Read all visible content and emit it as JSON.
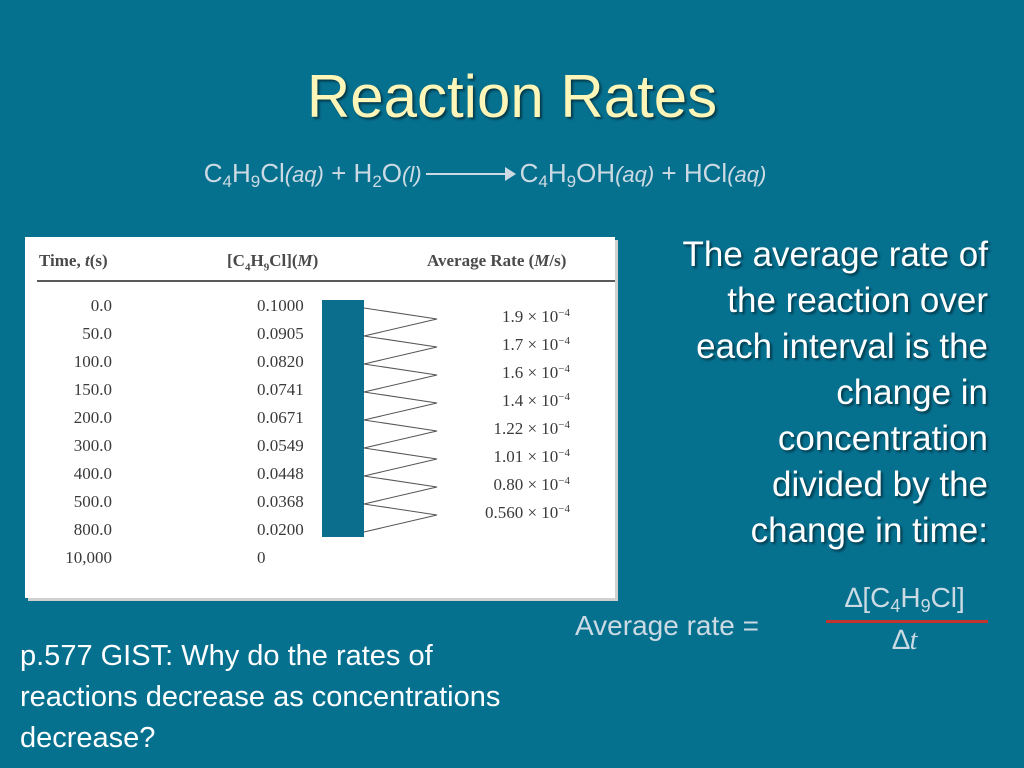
{
  "title": "Reaction Rates",
  "equation": {
    "reactant1": {
      "p1": "C",
      "s1": "4",
      "p2": "H",
      "s2": "9",
      "p3": "Cl",
      "state": "(aq)"
    },
    "plus1": "+",
    "reactant2": {
      "p1": "H",
      "s1": "2",
      "p2": "O",
      "state": "(l)"
    },
    "product1": {
      "p1": "C",
      "s1": "4",
      "p2": "H",
      "s2": "9",
      "p3": "OH",
      "state": "(aq)"
    },
    "plus2": "+",
    "product2": {
      "p1": "HCl",
      "state": "(aq)"
    }
  },
  "table": {
    "headers": {
      "time_prefix": "Time, ",
      "time_var": "t",
      "time_unit": "(s)",
      "conc_open": "[C",
      "conc_s1": "4",
      "conc_h": "H",
      "conc_s2": "9",
      "conc_close": "Cl](",
      "conc_unit": "M",
      "conc_end": ")",
      "rate_prefix": "Average Rate (",
      "rate_unit": "M",
      "rate_end": "/s)"
    },
    "times": [
      "0.0",
      "50.0",
      "100.0",
      "150.0",
      "200.0",
      "300.0",
      "400.0",
      "500.0",
      "800.0",
      "10,000"
    ],
    "concentrations": [
      "0.1000",
      "0.0905",
      "0.0820",
      "0.0741",
      "0.0671",
      "0.0549",
      "0.0448",
      "0.0368",
      "0.0200",
      "0"
    ],
    "rates": [
      {
        "mantissa": "1.9",
        "times": "×",
        "base": "10",
        "exp": "−4"
      },
      {
        "mantissa": "1.7",
        "times": "×",
        "base": "10",
        "exp": "−4"
      },
      {
        "mantissa": "1.6",
        "times": "×",
        "base": "10",
        "exp": "−4"
      },
      {
        "mantissa": "1.4",
        "times": "×",
        "base": "10",
        "exp": "−4"
      },
      {
        "mantissa": "1.22",
        "times": "×",
        "base": "10",
        "exp": "−4"
      },
      {
        "mantissa": "1.01",
        "times": "×",
        "base": "10",
        "exp": "−4"
      },
      {
        "mantissa": "0.80",
        "times": "×",
        "base": "10",
        "exp": "−4"
      },
      {
        "mantissa": "0.560",
        "times": "×",
        "base": "10",
        "exp": "−4"
      }
    ]
  },
  "explanation": {
    "lines": [
      "The average rate of",
      "the reaction over",
      "each interval is the",
      "change in",
      "concentration",
      "divided by the",
      "change in time:"
    ]
  },
  "formula": {
    "label": "Average rate =",
    "numerator": {
      "delta": "∆",
      "open": "[C",
      "s1": "4",
      "h": "H",
      "s2": "9",
      "close": "Cl]"
    },
    "denominator": {
      "delta": "∆",
      "var": "t"
    }
  },
  "gist": {
    "lines": [
      "p.577 GIST: Why do the rates of",
      "reactions decrease as concentrations",
      "decrease?"
    ]
  },
  "colors": {
    "background": "#06708f",
    "title": "#fdf6b8",
    "body_text": "#ffffff",
    "equation_text": "#ccdbe3",
    "bracket_bar": "#0b6e8c",
    "fraction_line": "#c2352f"
  }
}
